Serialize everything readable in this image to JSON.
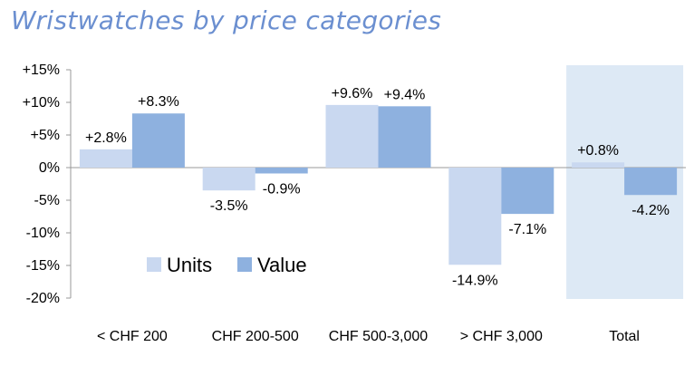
{
  "chart_data": {
    "type": "bar",
    "title": "Wristwatches by price categories",
    "categories": [
      "< CHF 200",
      "CHF 200-500",
      "CHF 500-3,000",
      "> CHF 3,000",
      "Total"
    ],
    "series": [
      {
        "name": "Units",
        "values": [
          2.8,
          -3.5,
          9.6,
          -14.9,
          0.8
        ],
        "labels": [
          "+2.8%",
          "-3.5%",
          "+9.6%",
          "-14.9%",
          "+0.8%"
        ],
        "color": "#c9d8f0"
      },
      {
        "name": "Value",
        "values": [
          8.3,
          -0.9,
          9.4,
          -7.1,
          -4.2
        ],
        "labels": [
          "+8.3%",
          "-0.9%",
          "+9.4%",
          "-7.1%",
          "-4.2%"
        ],
        "color": "#8eb1df"
      }
    ],
    "y_ticks": [
      "+15%",
      "+10%",
      "+5%",
      "0%",
      "-5%",
      "-10%",
      "-15%",
      "-20%"
    ],
    "y_tick_values": [
      15,
      10,
      5,
      0,
      -5,
      -10,
      -15,
      -20
    ],
    "ylim": [
      -20,
      15
    ],
    "highlight_category": "Total",
    "highlight_color": "#dde9f5",
    "title_color": "#6b8fd0",
    "legend_position": "lower-left",
    "xlabel": "",
    "ylabel": ""
  }
}
